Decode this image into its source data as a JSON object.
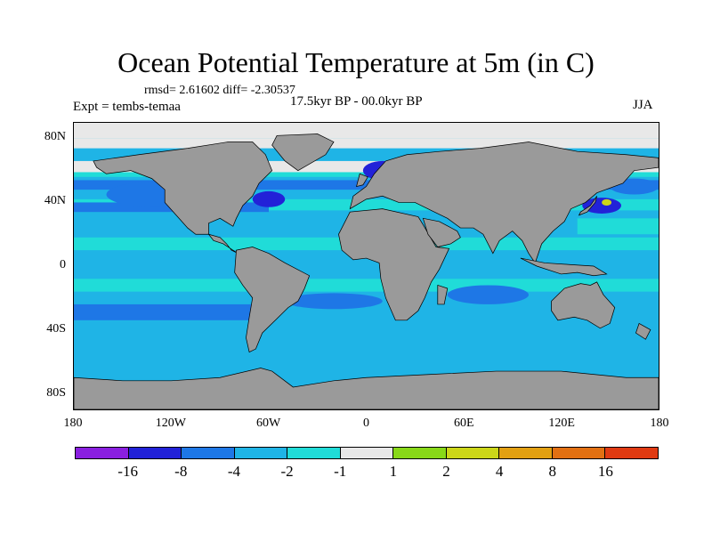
{
  "title": "Ocean Potential Temperature at 5m (in C)",
  "stats": "rmsd= 2.61602 diff= -2.30537",
  "experiment": "Expt = tembs-temaa",
  "period": "17.5kyr BP - 00.0kyr BP",
  "season": "JJA",
  "map": {
    "projection": "cylindrical-equidistant",
    "lon_range": [
      -180,
      180
    ],
    "lat_range": [
      -90,
      90
    ],
    "land_color": "#9a9a9a",
    "ocean_default_color": "#1fb4e6",
    "lat_ticks": [
      {
        "label": "80N",
        "lat": 80
      },
      {
        "label": "40N",
        "lat": 40
      },
      {
        "label": "0",
        "lat": 0
      },
      {
        "label": "40S",
        "lat": -40
      },
      {
        "label": "80S",
        "lat": -80
      }
    ],
    "lon_ticks": [
      {
        "label": "180",
        "lon": -180
      },
      {
        "label": "120W",
        "lon": -120
      },
      {
        "label": "60W",
        "lon": -60
      },
      {
        "label": "0",
        "lon": 0
      },
      {
        "label": "60E",
        "lon": 60
      },
      {
        "label": "120E",
        "lon": 120
      },
      {
        "label": "180",
        "lon": 180
      }
    ]
  },
  "colorbar": {
    "colors": [
      "#8a1fe0",
      "#2222d8",
      "#1e77e6",
      "#1fb4e6",
      "#20dcd8",
      "#e8e8e8",
      "#88d818",
      "#ccd618",
      "#e2a012",
      "#e27012",
      "#e03a12"
    ],
    "labels": [
      {
        "text": "-16",
        "index": 2
      },
      {
        "text": "-8",
        "index": 3
      },
      {
        "text": "-4",
        "index": 4
      },
      {
        "text": "-2",
        "index": 5
      },
      {
        "text": "-1",
        "index": 6
      },
      {
        "text": "1",
        "index": 7
      },
      {
        "text": "2",
        "index": 8
      },
      {
        "text": "4",
        "index": 9
      },
      {
        "text": "8",
        "index": 10
      },
      {
        "text": "16",
        "index": 11
      }
    ]
  }
}
